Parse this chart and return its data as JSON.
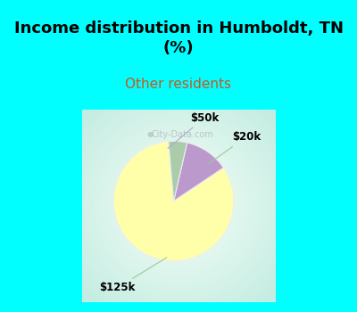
{
  "title": "Income distribution in Humboldt, TN\n(%)",
  "subtitle": "Other residents",
  "title_color": "#000000",
  "subtitle_color": "#cc5522",
  "title_bg_color": "#00FFFF",
  "chart_border_color": "#00FFFF",
  "slices": [
    {
      "label": "$125k",
      "value": 83,
      "color": "#FFFFAA"
    },
    {
      "label": "$50k",
      "value": 12,
      "color": "#BB99CC"
    },
    {
      "label": "$20k",
      "value": 5,
      "color": "#AACCAA"
    }
  ],
  "startangle": 95,
  "figsize": [
    4.0,
    3.5
  ],
  "dpi": 100,
  "watermark": "City-Data.com"
}
